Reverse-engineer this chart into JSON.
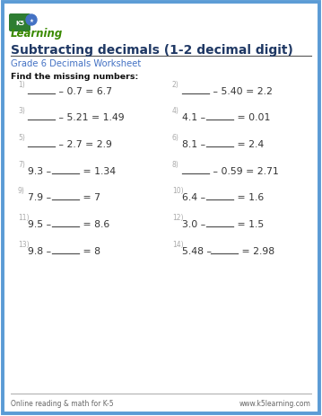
{
  "title": "Subtracting decimals (1-2 decimal digit)",
  "subtitle": "Grade 6 Decimals Worksheet",
  "instruction": "Find the missing numbers:",
  "footer_left": "Online reading & math for K-5",
  "footer_right": "www.k5learning.com",
  "border_color": "#5b9bd5",
  "title_color": "#1f3864",
  "subtitle_color": "#4472c4",
  "problems": [
    {
      "num": "1)",
      "left": "",
      "op": "– 0.7",
      "eq": "= 6.7",
      "blank_left": true
    },
    {
      "num": "2)",
      "left": "",
      "op": "– 5.40",
      "eq": "= 2.2",
      "blank_left": true
    },
    {
      "num": "3)",
      "left": "",
      "op": "– 5.21",
      "eq": "= 1.49",
      "blank_left": true
    },
    {
      "num": "4)",
      "left": "4.1 –",
      "op": "",
      "eq": "= 0.01",
      "blank_left": false
    },
    {
      "num": "5)",
      "left": "",
      "op": "– 2.7",
      "eq": "= 2.9",
      "blank_left": true
    },
    {
      "num": "6)",
      "left": "8.1 –",
      "op": "",
      "eq": "= 2.4",
      "blank_left": false
    },
    {
      "num": "7)",
      "left": "9.3 –",
      "op": "",
      "eq": "= 1.34",
      "blank_left": false
    },
    {
      "num": "8)",
      "left": "",
      "op": "– 0.59",
      "eq": "= 2.71",
      "blank_left": true
    },
    {
      "num": "9)",
      "left": "7.9 –",
      "op": "",
      "eq": "= 7",
      "blank_left": false
    },
    {
      "num": "10)",
      "left": "6.4 –",
      "op": "",
      "eq": "= 1.6",
      "blank_left": false
    },
    {
      "num": "11)",
      "left": "9.5 –",
      "op": "",
      "eq": "= 8.6",
      "blank_left": false
    },
    {
      "num": "12)",
      "left": "3.0 –",
      "op": "",
      "eq": "= 1.5",
      "blank_left": false
    },
    {
      "num": "13)",
      "left": "9.8 –",
      "op": "",
      "eq": "= 8",
      "blank_left": false
    },
    {
      "num": "14)",
      "left": "5.48 –",
      "op": "",
      "eq": "= 2.98",
      "blank_left": false
    }
  ],
  "background_color": "#ffffff",
  "num_color": "#aaaaaa",
  "text_color": "#333333",
  "blank_line_color": "#555555",
  "logo_green_dark": "#2d6e2d",
  "logo_green_light": "#5aaa1a",
  "logo_blue": "#4472c4"
}
